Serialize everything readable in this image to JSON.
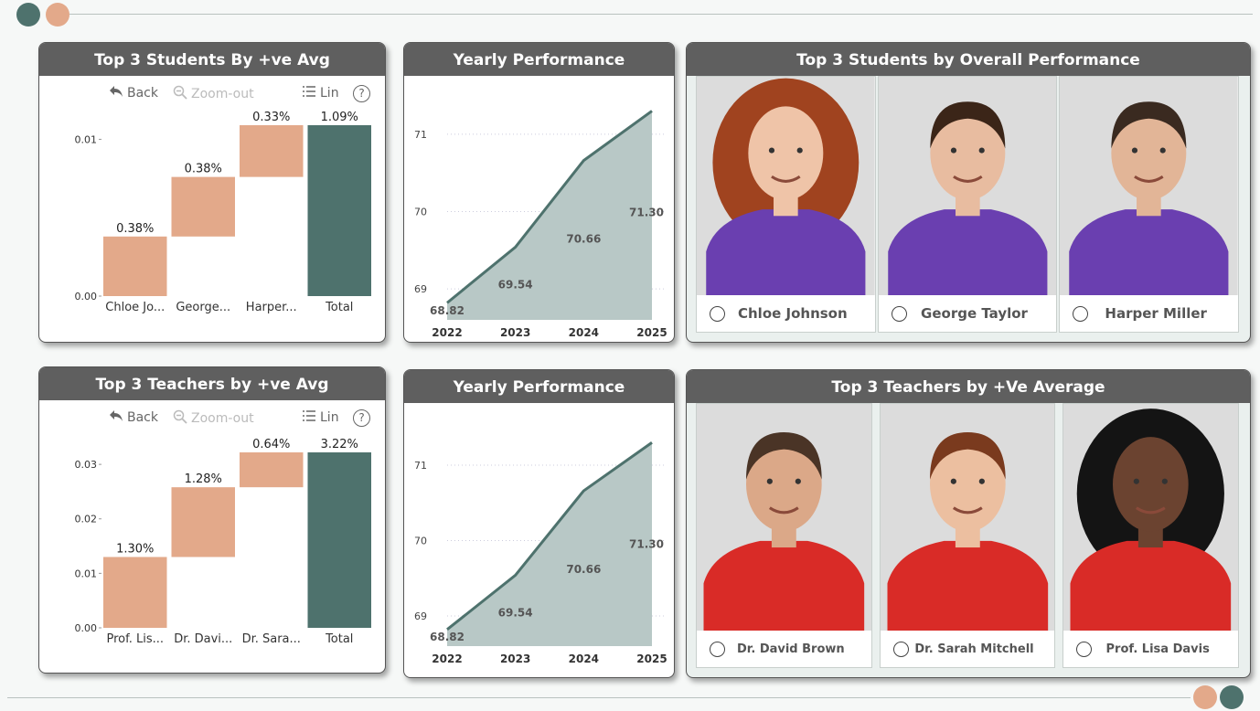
{
  "colors": {
    "accent_dark": "#4e726d",
    "accent_peach": "#e3a98a",
    "header_bg": "#5f5f5f",
    "student_shirt": "#6a3fb0",
    "teacher_shirt": "#d92b27"
  },
  "toolbar": {
    "back": "Back",
    "zoom_out": "Zoom-out",
    "lin": "Lin",
    "help": "?"
  },
  "cards": {
    "students_avg": {
      "title": "Top 3 Students By +ve Avg"
    },
    "students_yearly": {
      "title": "Yearly Performance"
    },
    "students_overall": {
      "title": "Top 3 Students by Overall Performance"
    },
    "teachers_avg": {
      "title": "Top 3 Teachers by +ve Avg"
    },
    "teachers_yearly": {
      "title": "Yearly Performance"
    },
    "teachers_top": {
      "title": "Top 3 Teachers by +Ve Average"
    }
  },
  "students": [
    {
      "name": "Chloe Johnson",
      "icon": "student-photo-icon"
    },
    {
      "name": "George Taylor",
      "icon": "student-photo-icon"
    },
    {
      "name": "Harper Miller",
      "icon": "student-photo-icon"
    }
  ],
  "teachers": [
    {
      "name": "Dr. David Brown",
      "icon": "teacher-photo-icon"
    },
    {
      "name": "Dr. Sarah Mitchell",
      "icon": "teacher-photo-icon"
    },
    {
      "name": "Prof. Lisa Davis",
      "icon": "teacher-photo-icon"
    }
  ],
  "chart_data": [
    {
      "id": "students_waterfall",
      "type": "bar",
      "subtype": "waterfall",
      "title": "Top 3 Students By +ve Avg",
      "categories": [
        "Chloe Jo...",
        "George...",
        "Harper...",
        "Total"
      ],
      "values": [
        0.0038,
        0.0038,
        0.0033,
        0.0109
      ],
      "data_labels": [
        "0.38%",
        "0.38%",
        "0.33%",
        "1.09%"
      ],
      "yticks": [
        "0.00",
        "0.01"
      ],
      "ytick_values": [
        0,
        0.01
      ],
      "ylim": [
        0,
        0.0109
      ],
      "grid": false
    },
    {
      "id": "students_yearly",
      "type": "area",
      "title": "Yearly Performance",
      "x": [
        "2022",
        "2023",
        "2024",
        "2025"
      ],
      "values": [
        68.82,
        69.54,
        70.66,
        71.3
      ],
      "data_labels": [
        "68.82",
        "69.54",
        "70.66",
        "71.30"
      ],
      "yticks": [
        "69",
        "70",
        "71"
      ],
      "ytick_values": [
        69,
        70,
        71
      ],
      "ylim": [
        68.6,
        71.4
      ],
      "grid": true
    },
    {
      "id": "teachers_waterfall",
      "type": "bar",
      "subtype": "waterfall",
      "title": "Top 3 Teachers by +ve Avg",
      "categories": [
        "Prof. Lis...",
        "Dr. Davi...",
        "Dr. Sara...",
        "Total"
      ],
      "values": [
        0.013,
        0.0128,
        0.0064,
        0.0322
      ],
      "data_labels": [
        "1.30%",
        "1.28%",
        "0.64%",
        "3.22%"
      ],
      "yticks": [
        "0.00",
        "0.01",
        "0.02",
        "0.03"
      ],
      "ytick_values": [
        0,
        0.01,
        0.02,
        0.03
      ],
      "ylim": [
        0,
        0.0322
      ],
      "grid": false
    },
    {
      "id": "teachers_yearly",
      "type": "area",
      "title": "Yearly Performance",
      "x": [
        "2022",
        "2023",
        "2024",
        "2025"
      ],
      "values": [
        68.82,
        69.54,
        70.66,
        71.3
      ],
      "data_labels": [
        "68.82",
        "69.54",
        "70.66",
        "71.30"
      ],
      "yticks": [
        "69",
        "70",
        "71"
      ],
      "ytick_values": [
        69,
        70,
        71
      ],
      "ylim": [
        68.6,
        71.4
      ],
      "grid": true
    }
  ]
}
